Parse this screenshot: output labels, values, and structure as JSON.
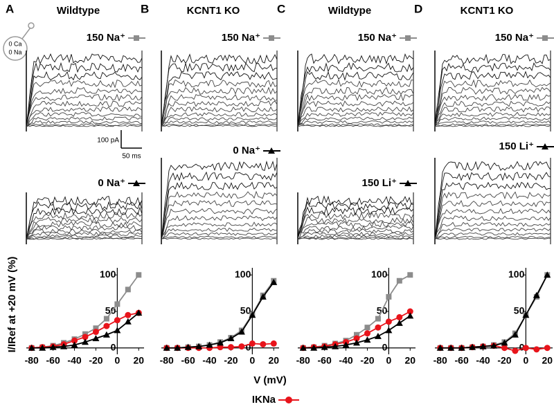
{
  "figure": {
    "icon": [
      "0 Ca",
      "0 Na"
    ],
    "scale_bar": [
      "100 pA",
      "50 ms"
    ],
    "ylabel": "I/IRef at +20 mV (%)",
    "xlabel": "V (mV)",
    "legend": "IKNa",
    "legend_color": "#e8141b"
  },
  "chart_data": [
    {
      "type": "line",
      "panel": "A",
      "title": "Wildtype",
      "x": [
        -80,
        -70,
        -60,
        -50,
        -40,
        -30,
        -20,
        -10,
        0,
        10,
        20
      ],
      "xlim": [
        -85,
        25
      ],
      "xticks": [
        -80,
        -60,
        -40,
        -20,
        0,
        20
      ],
      "ylim": [
        -5,
        105
      ],
      "yticks": [
        0,
        50,
        100
      ],
      "series": [
        {
          "name": "150 Na⁺",
          "color": "#8c8c8c",
          "marker": "square",
          "values": [
            0,
            1,
            3,
            7,
            12,
            19,
            27,
            40,
            60,
            80,
            100
          ]
        },
        {
          "name": "0 Na⁺",
          "color": "#000000",
          "marker": "triangle",
          "values": [
            0,
            0,
            1,
            2,
            4,
            8,
            13,
            18,
            24,
            36,
            48
          ]
        },
        {
          "color": "#e8141b",
          "marker": "circle",
          "values": [
            0,
            1,
            2,
            5,
            10,
            15,
            22,
            30,
            38,
            45,
            48
          ]
        }
      ]
    },
    {
      "type": "line",
      "panel": "B",
      "title": "KCNT1 KO",
      "x": [
        -80,
        -70,
        -60,
        -50,
        -40,
        -30,
        -20,
        -10,
        0,
        10,
        20
      ],
      "xlim": [
        -85,
        25
      ],
      "xticks": [
        -80,
        -60,
        -40,
        -20,
        0,
        20
      ],
      "ylim": [
        -5,
        105
      ],
      "yticks": [
        0,
        50,
        100
      ],
      "series": [
        {
          "name": "150 Na⁺",
          "color": "#8c8c8c",
          "marker": "square",
          "values": [
            0,
            0,
            1,
            2,
            4,
            8,
            14,
            24,
            46,
            72,
            92
          ]
        },
        {
          "name": "0 Na⁺",
          "color": "#000000",
          "marker": "triangle",
          "values": [
            0,
            0,
            1,
            2,
            4,
            7,
            13,
            22,
            45,
            70,
            90
          ]
        },
        {
          "color": "#e8141b",
          "marker": "circle",
          "values": [
            0,
            0,
            0,
            0,
            0,
            1,
            1,
            2,
            6,
            5,
            6
          ]
        }
      ]
    },
    {
      "type": "line",
      "panel": "C",
      "title": "Wildtype",
      "x": [
        -80,
        -70,
        -60,
        -50,
        -40,
        -30,
        -20,
        -10,
        0,
        10,
        20
      ],
      "xlim": [
        -85,
        25
      ],
      "xticks": [
        -80,
        -60,
        -40,
        -20,
        0,
        20
      ],
      "ylim": [
        -5,
        105
      ],
      "yticks": [
        0,
        50,
        100
      ],
      "series": [
        {
          "name": "150 Na⁺",
          "color": "#8c8c8c",
          "marker": "square",
          "values": [
            0,
            1,
            3,
            6,
            10,
            18,
            28,
            40,
            70,
            92,
            100
          ]
        },
        {
          "name": "150 Li⁺",
          "color": "#000000",
          "marker": "triangle",
          "values": [
            0,
            0,
            1,
            2,
            4,
            7,
            11,
            16,
            24,
            34,
            44
          ]
        },
        {
          "color": "#e8141b",
          "marker": "circle",
          "values": [
            0,
            1,
            2,
            5,
            8,
            13,
            20,
            28,
            36,
            42,
            50
          ]
        }
      ]
    },
    {
      "type": "line",
      "panel": "D",
      "title": "KCNT1 KO",
      "x": [
        -80,
        -70,
        -60,
        -50,
        -40,
        -30,
        -20,
        -10,
        0,
        10,
        20
      ],
      "xlim": [
        -85,
        25
      ],
      "xticks": [
        -80,
        -60,
        -40,
        -20,
        0,
        20
      ],
      "ylim": [
        -5,
        105
      ],
      "yticks": [
        0,
        50,
        100
      ],
      "series": [
        {
          "name": "150 Na⁺",
          "color": "#8c8c8c",
          "marker": "square",
          "values": [
            0,
            0,
            0,
            1,
            2,
            4,
            8,
            20,
            45,
            70,
            100
          ]
        },
        {
          "name": "150 Li⁺",
          "color": "#000000",
          "marker": "triangle",
          "values": [
            0,
            0,
            0,
            1,
            2,
            3,
            7,
            18,
            45,
            72,
            100
          ]
        },
        {
          "color": "#e8141b",
          "marker": "circle",
          "values": [
            0,
            0,
            0,
            1,
            2,
            3,
            0,
            -4,
            0,
            -2,
            0
          ]
        }
      ]
    }
  ]
}
